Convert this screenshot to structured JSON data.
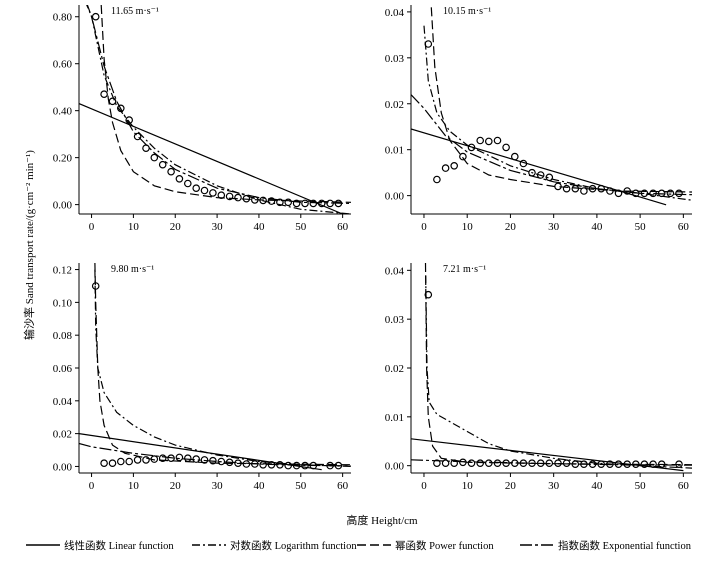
{
  "figure": {
    "ylabel": "输沙率 Sand transport rate/(g·cm⁻² min⁻¹)",
    "xlabel": "高度 Height/cm",
    "legend": [
      {
        "label": "线性函数 Linear function",
        "dash": "solid"
      },
      {
        "label": "对数函数 Logarithm function",
        "dash": "dashdot"
      },
      {
        "label": "幂函数 Power function",
        "dash": "dash"
      },
      {
        "label": "指数函数 Exponential function",
        "dash": "longdashdot"
      }
    ]
  },
  "chart_data": [
    {
      "type": "scatter",
      "annotation": "11.65 m·s⁻¹",
      "xlim": [
        -3,
        62
      ],
      "ylim": [
        -0.04,
        0.85
      ],
      "xticks": [
        0,
        10,
        20,
        30,
        40,
        50,
        60
      ],
      "yticks": [
        0.0,
        0.2,
        0.4,
        0.6,
        0.8
      ],
      "ytick_labels": [
        "0.00",
        "0.20",
        "0.40",
        "0.60",
        "0.80"
      ],
      "points": [
        [
          1,
          0.8
        ],
        [
          3,
          0.47
        ],
        [
          5,
          0.44
        ],
        [
          7,
          0.41
        ],
        [
          9,
          0.36
        ],
        [
          11,
          0.29
        ],
        [
          13,
          0.24
        ],
        [
          15,
          0.2
        ],
        [
          17,
          0.17
        ],
        [
          19,
          0.14
        ],
        [
          21,
          0.11
        ],
        [
          23,
          0.09
        ],
        [
          25,
          0.07
        ],
        [
          27,
          0.06
        ],
        [
          29,
          0.05
        ],
        [
          31,
          0.04
        ],
        [
          33,
          0.035
        ],
        [
          35,
          0.03
        ],
        [
          37,
          0.025
        ],
        [
          39,
          0.02
        ],
        [
          41,
          0.018
        ],
        [
          43,
          0.015
        ],
        [
          45,
          0.01
        ],
        [
          47,
          0.01
        ],
        [
          49,
          0.005
        ],
        [
          51,
          0.005
        ],
        [
          53,
          0.005
        ],
        [
          55,
          0.005
        ],
        [
          57,
          0.005
        ],
        [
          59,
          0.005
        ]
      ],
      "fits": {
        "linear": [
          [
            -3,
            0.43
          ],
          [
            60,
            -0.04
          ]
        ],
        "logarithm": [
          [
            -3,
            0.93
          ],
          [
            0,
            0.8
          ],
          [
            3,
            0.55
          ],
          [
            6,
            0.42
          ],
          [
            10,
            0.33
          ],
          [
            15,
            0.24
          ],
          [
            20,
            0.17
          ],
          [
            30,
            0.08
          ],
          [
            40,
            0.02
          ],
          [
            50,
            -0.02
          ],
          [
            62,
            -0.04
          ]
        ],
        "power": [
          [
            2.3,
            0.85
          ],
          [
            3,
            0.62
          ],
          [
            4,
            0.45
          ],
          [
            5,
            0.35
          ],
          [
            7,
            0.23
          ],
          [
            10,
            0.14
          ],
          [
            15,
            0.08
          ],
          [
            20,
            0.055
          ],
          [
            30,
            0.03
          ],
          [
            40,
            0.02
          ],
          [
            62,
            0.01
          ]
        ],
        "exponential": [
          [
            -3,
            0.95
          ],
          [
            0,
            0.8
          ],
          [
            3,
            0.59
          ],
          [
            6,
            0.44
          ],
          [
            10,
            0.31
          ],
          [
            15,
            0.22
          ],
          [
            20,
            0.15
          ],
          [
            30,
            0.07
          ],
          [
            40,
            0.03
          ],
          [
            50,
            0.01
          ],
          [
            62,
            0.005
          ]
        ]
      }
    },
    {
      "type": "scatter",
      "annotation": "10.15 m·s⁻¹",
      "xlim": [
        -3,
        62
      ],
      "ylim": [
        -0.004,
        0.0415
      ],
      "xticks": [
        0,
        10,
        20,
        30,
        40,
        50,
        60
      ],
      "yticks": [
        0.0,
        0.01,
        0.02,
        0.03,
        0.04
      ],
      "ytick_labels": [
        "0.00",
        "0.01",
        "0.02",
        "0.03",
        "0.04"
      ],
      "points": [
        [
          1,
          0.033
        ],
        [
          3,
          0.0035
        ],
        [
          5,
          0.006
        ],
        [
          7,
          0.0065
        ],
        [
          9,
          0.0085
        ],
        [
          11,
          0.0105
        ],
        [
          13,
          0.012
        ],
        [
          15,
          0.0118
        ],
        [
          17,
          0.012
        ],
        [
          19,
          0.0105
        ],
        [
          21,
          0.0085
        ],
        [
          23,
          0.007
        ],
        [
          25,
          0.005
        ],
        [
          27,
          0.0045
        ],
        [
          29,
          0.004
        ],
        [
          31,
          0.002
        ],
        [
          33,
          0.0015
        ],
        [
          35,
          0.0015
        ],
        [
          37,
          0.001
        ],
        [
          39,
          0.0015
        ],
        [
          41,
          0.0015
        ],
        [
          43,
          0.001
        ],
        [
          45,
          0.0005
        ],
        [
          47,
          0.001
        ],
        [
          49,
          0.0005
        ],
        [
          51,
          0.0005
        ],
        [
          53,
          0.0005
        ],
        [
          55,
          0.0005
        ],
        [
          57,
          0.0005
        ],
        [
          59,
          0.0005
        ]
      ],
      "fits": {
        "linear": [
          [
            -3,
            0.0145
          ],
          [
            56,
            -0.002
          ]
        ],
        "logarithm": [
          [
            0,
            0.037
          ],
          [
            1,
            0.025
          ],
          [
            3,
            0.018
          ],
          [
            6,
            0.014
          ],
          [
            10,
            0.011
          ],
          [
            20,
            0.0065
          ],
          [
            30,
            0.0035
          ],
          [
            40,
            0.0015
          ],
          [
            50,
            0.0005
          ],
          [
            62,
            -0.001
          ]
        ],
        "power": [
          [
            1.7,
            0.041
          ],
          [
            2.5,
            0.028
          ],
          [
            4,
            0.018
          ],
          [
            6,
            0.012
          ],
          [
            10,
            0.007
          ],
          [
            15,
            0.0045
          ],
          [
            20,
            0.0035
          ],
          [
            30,
            0.002
          ],
          [
            45,
            0.001
          ],
          [
            62,
            0.0008
          ]
        ],
        "exponential": [
          [
            -3,
            0.022
          ],
          [
            0,
            0.019
          ],
          [
            5,
            0.013
          ],
          [
            10,
            0.0095
          ],
          [
            20,
            0.0055
          ],
          [
            30,
            0.003
          ],
          [
            40,
            0.0015
          ],
          [
            50,
            0.0005
          ],
          [
            62,
            0.0002
          ]
        ]
      }
    },
    {
      "type": "scatter",
      "annotation": "9.80 m·s⁻¹",
      "xlim": [
        -3,
        62
      ],
      "ylim": [
        -0.004,
        0.124
      ],
      "xticks": [
        0,
        10,
        20,
        30,
        40,
        50,
        60
      ],
      "yticks": [
        0.0,
        0.02,
        0.04,
        0.06,
        0.08,
        0.1,
        0.12
      ],
      "ytick_labels": [
        "0.00",
        "0.02",
        "0.04",
        "0.06",
        "0.08",
        "0.10",
        "0.12"
      ],
      "points": [
        [
          1,
          0.11
        ],
        [
          3,
          0.002
        ],
        [
          5,
          0.002
        ],
        [
          7,
          0.003
        ],
        [
          9,
          0.003
        ],
        [
          11,
          0.004
        ],
        [
          13,
          0.004
        ],
        [
          15,
          0.0045
        ],
        [
          17,
          0.005
        ],
        [
          19,
          0.005
        ],
        [
          21,
          0.0055
        ],
        [
          23,
          0.005
        ],
        [
          25,
          0.0045
        ],
        [
          27,
          0.004
        ],
        [
          29,
          0.0035
        ],
        [
          31,
          0.003
        ],
        [
          33,
          0.0025
        ],
        [
          35,
          0.002
        ],
        [
          37,
          0.0015
        ],
        [
          39,
          0.0015
        ],
        [
          41,
          0.001
        ],
        [
          43,
          0.001
        ],
        [
          45,
          0.001
        ],
        [
          47,
          0.0005
        ],
        [
          49,
          0.0005
        ],
        [
          51,
          0.0005
        ],
        [
          53,
          0.0005
        ],
        [
          57,
          0.0005
        ],
        [
          59,
          0.0005
        ]
      ],
      "fits": {
        "linear": [
          [
            -3,
            0.02
          ],
          [
            55,
            -0.002
          ]
        ],
        "logarithm": [
          [
            0.8,
            0.12
          ],
          [
            1,
            0.085
          ],
          [
            1.5,
            0.06
          ],
          [
            3,
            0.045
          ],
          [
            6,
            0.033
          ],
          [
            10,
            0.025
          ],
          [
            15,
            0.018
          ],
          [
            20,
            0.013
          ],
          [
            30,
            0.007
          ],
          [
            40,
            0.003
          ],
          [
            50,
            0.001
          ],
          [
            62,
            0.0
          ]
        ],
        "power": [
          [
            0.8,
            0.124
          ],
          [
            1,
            0.1
          ],
          [
            1.5,
            0.06
          ],
          [
            2,
            0.04
          ],
          [
            3,
            0.025
          ],
          [
            5,
            0.013
          ],
          [
            8,
            0.008
          ],
          [
            15,
            0.004
          ],
          [
            30,
            0.002
          ],
          [
            62,
            0.001
          ]
        ],
        "exponential": [
          [
            -3,
            0.014
          ],
          [
            0,
            0.012
          ],
          [
            10,
            0.008
          ],
          [
            20,
            0.005
          ],
          [
            30,
            0.003
          ],
          [
            40,
            0.0015
          ],
          [
            50,
            0.0007
          ],
          [
            62,
            0.0003
          ]
        ]
      }
    },
    {
      "type": "scatter",
      "annotation": "7.21 m·s⁻¹",
      "xlim": [
        -3,
        62
      ],
      "ylim": [
        -0.0015,
        0.0415
      ],
      "xticks": [
        0,
        10,
        20,
        30,
        40,
        50,
        60
      ],
      "yticks": [
        0.0,
        0.01,
        0.02,
        0.03,
        0.04
      ],
      "ytick_labels": [
        "0.00",
        "0.01",
        "0.02",
        "0.03",
        "0.04"
      ],
      "points": [
        [
          1,
          0.035
        ],
        [
          3,
          0.0005
        ],
        [
          5,
          0.0005
        ],
        [
          7,
          0.0005
        ],
        [
          9,
          0.0007
        ],
        [
          11,
          0.0005
        ],
        [
          13,
          0.0005
        ],
        [
          15,
          0.0005
        ],
        [
          17,
          0.0005
        ],
        [
          19,
          0.0005
        ],
        [
          21,
          0.0005
        ],
        [
          23,
          0.0005
        ],
        [
          25,
          0.0005
        ],
        [
          27,
          0.0005
        ],
        [
          29,
          0.0005
        ],
        [
          31,
          0.0005
        ],
        [
          33,
          0.0005
        ],
        [
          35,
          0.0003
        ],
        [
          37,
          0.0003
        ],
        [
          39,
          0.0003
        ],
        [
          41,
          0.0003
        ],
        [
          43,
          0.0003
        ],
        [
          45,
          0.0003
        ],
        [
          47,
          0.0003
        ],
        [
          49,
          0.0003
        ],
        [
          51,
          0.0003
        ],
        [
          53,
          0.0003
        ],
        [
          55,
          0.0003
        ],
        [
          59,
          0.0003
        ]
      ],
      "fits": {
        "linear": [
          [
            -3,
            0.0055
          ],
          [
            60,
            -0.001
          ]
        ],
        "logarithm": [
          [
            0.4,
            0.039
          ],
          [
            0.7,
            0.02
          ],
          [
            1.2,
            0.013
          ],
          [
            3,
            0.0105
          ],
          [
            6,
            0.009
          ],
          [
            10,
            0.007
          ],
          [
            15,
            0.0045
          ],
          [
            20,
            0.003
          ],
          [
            30,
            0.0015
          ],
          [
            40,
            0.0005
          ],
          [
            50,
            0.0
          ],
          [
            62,
            -0.0005
          ]
        ],
        "power": [
          [
            0.35,
            0.0415
          ],
          [
            0.6,
            0.02
          ],
          [
            1,
            0.01
          ],
          [
            2,
            0.004
          ],
          [
            4,
            0.0015
          ],
          [
            10,
            0.0007
          ],
          [
            30,
            0.0004
          ],
          [
            62,
            0.0002
          ]
        ],
        "exponential": [
          [
            -3,
            0.0012
          ],
          [
            10,
            0.0008
          ],
          [
            20,
            0.0006
          ],
          [
            30,
            0.0004
          ],
          [
            45,
            0.0002
          ],
          [
            62,
            0.0001
          ]
        ]
      }
    }
  ]
}
